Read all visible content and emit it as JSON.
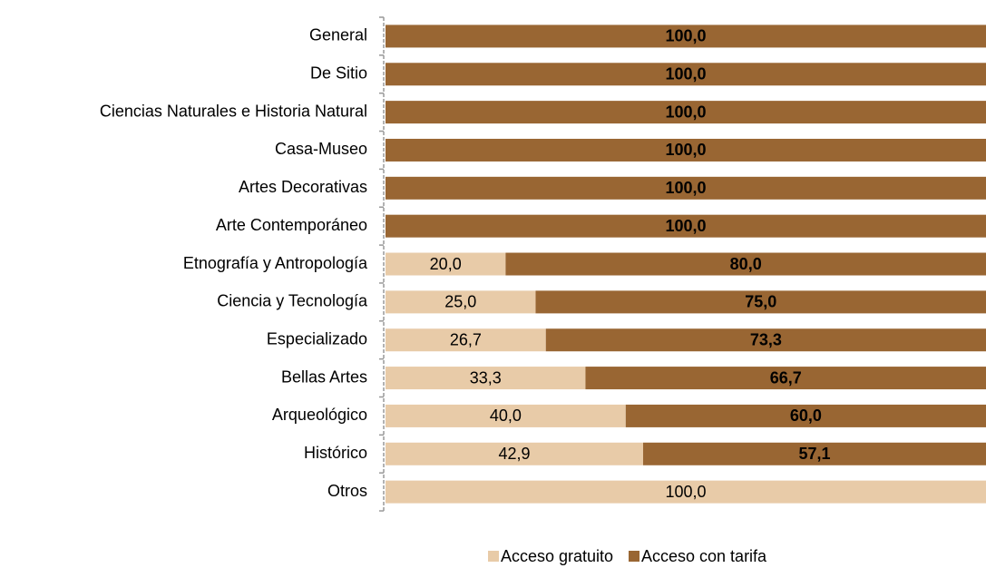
{
  "chart_data": {
    "type": "stacked-bar-horizontal",
    "categories": [
      "General",
      "De Sitio",
      "Ciencias Naturales e Historia Natural",
      "Casa-Museo",
      "Artes Decorativas",
      "Arte Contemporáneo",
      "Etnografía y Antropología",
      "Ciencia y Tecnología",
      "Especializado",
      "Bellas Artes",
      "Arqueológico",
      "Histórico",
      "Otros"
    ],
    "series": [
      {
        "name": "Acceso gratuito",
        "color": "#e8cba8",
        "label_color": "#000000",
        "label_bold": false,
        "values": [
          null,
          null,
          null,
          null,
          null,
          null,
          20.0,
          25.0,
          26.7,
          33.3,
          40.0,
          42.9,
          100.0
        ],
        "value_labels": [
          null,
          null,
          null,
          null,
          null,
          null,
          "20,0",
          "25,0",
          "26,7",
          "33,3",
          "40,0",
          "42,9",
          "100,0"
        ]
      },
      {
        "name": "Acceso con tarifa",
        "color": "#996633",
        "label_color": "#ffffff",
        "label_bold": true,
        "values": [
          100.0,
          100.0,
          100.0,
          100.0,
          100.0,
          100.0,
          80.0,
          75.0,
          73.3,
          66.7,
          60.0,
          57.1,
          null
        ],
        "value_labels": [
          "100,0",
          "100,0",
          "100,0",
          "100,0",
          "100,0",
          "100,0",
          "80,0",
          "75,0",
          "73,3",
          "66,7",
          "60,0",
          "57,1",
          null
        ]
      }
    ],
    "xlim": [
      0,
      100
    ]
  }
}
